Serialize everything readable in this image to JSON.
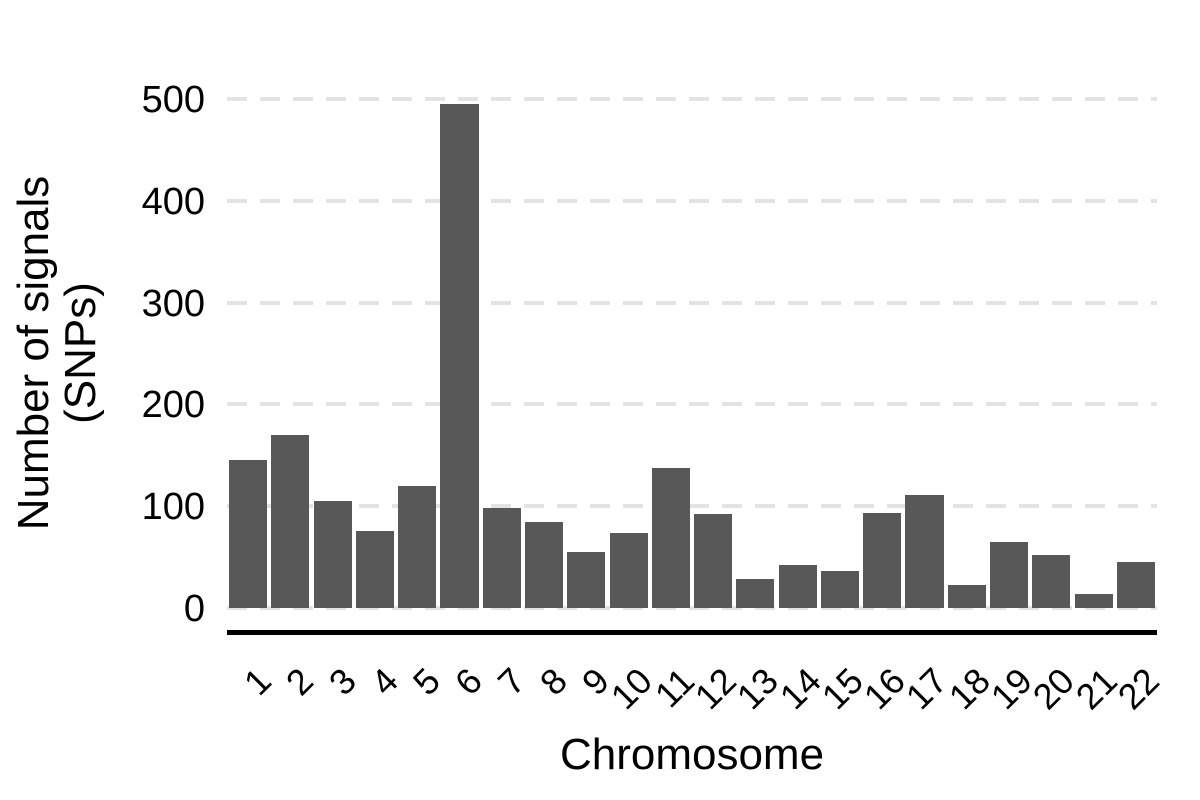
{
  "chart_data": {
    "type": "bar",
    "title": "",
    "xlabel": "Chromosome",
    "ylabel": "Number of signals (SNPs)",
    "ylabel_lines": [
      "Number of signals",
      "(SNPs)"
    ],
    "categories": [
      "1",
      "2",
      "3",
      "4",
      "5",
      "6",
      "7",
      "8",
      "9",
      "10",
      "11",
      "12",
      "13",
      "14",
      "15",
      "16",
      "17",
      "18",
      "19",
      "20",
      "21",
      "22"
    ],
    "values": [
      145,
      170,
      105,
      76,
      120,
      495,
      98,
      84,
      55,
      74,
      138,
      92,
      28,
      42,
      36,
      93,
      111,
      23,
      65,
      52,
      14,
      45
    ],
    "yticks": [
      0,
      100,
      200,
      300,
      400,
      500
    ],
    "ylim": [
      0,
      500
    ],
    "grid": "horizontal major gridlines, dashed",
    "legend_position": "none",
    "colors": {
      "bar": "#585858",
      "gridline": "#e3e3e3",
      "axis_line": "#000000",
      "text": "#000000",
      "background": "#ffffff"
    }
  }
}
